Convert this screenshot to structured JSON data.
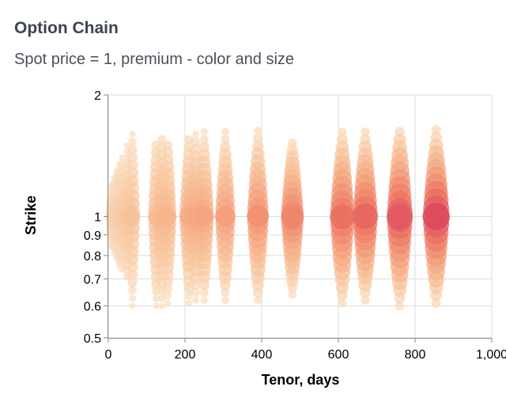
{
  "header": {
    "title": "Option Chain",
    "subtitle": "Spot price = 1, premium - color and size"
  },
  "chart_data": {
    "type": "scatter",
    "title": "Option Chain",
    "subtitle": "Spot price = 1, premium - color and size",
    "xlabel": "Tenor, days",
    "ylabel": "Strike",
    "xlim": [
      0,
      1000
    ],
    "ylim": [
      0.5,
      2
    ],
    "y_scale": "log",
    "grid": true,
    "x_ticks": [
      {
        "value": 0,
        "label": "0"
      },
      {
        "value": 200,
        "label": "200"
      },
      {
        "value": 400,
        "label": "400"
      },
      {
        "value": 600,
        "label": "600"
      },
      {
        "value": 800,
        "label": "800"
      },
      {
        "value": 1000,
        "label": "1,000"
      }
    ],
    "y_ticks": [
      {
        "value": 0.5,
        "label": "0.5"
      },
      {
        "value": 0.6,
        "label": "0.6"
      },
      {
        "value": 0.7,
        "label": "0.7"
      },
      {
        "value": 0.8,
        "label": "0.8"
      },
      {
        "value": 0.9,
        "label": "0.9"
      },
      {
        "value": 1,
        "label": "1"
      },
      {
        "value": 2,
        "label": "2"
      }
    ],
    "color_scale": [
      "#fbe0c4",
      "#f7c39a",
      "#f4a07a",
      "#ec7560",
      "#d8415c"
    ],
    "tenors": [
      {
        "x": 7,
        "strike_min": 0.84,
        "strike_max": 1.2,
        "max_premium": 0.1
      },
      {
        "x": 14,
        "strike_min": 0.82,
        "strike_max": 1.25,
        "max_premium": 0.12
      },
      {
        "x": 21,
        "strike_min": 0.79,
        "strike_max": 1.3,
        "max_premium": 0.14
      },
      {
        "x": 28,
        "strike_min": 0.76,
        "strike_max": 1.35,
        "max_premium": 0.16
      },
      {
        "x": 35,
        "strike_min": 0.74,
        "strike_max": 1.4,
        "max_premium": 0.18
      },
      {
        "x": 49,
        "strike_min": 0.71,
        "strike_max": 1.5,
        "max_premium": 0.21
      },
      {
        "x": 63,
        "strike_min": 0.6,
        "strike_max": 1.6,
        "max_premium": 0.24
      },
      {
        "x": 125,
        "strike_min": 0.6,
        "strike_max": 1.5,
        "max_premium": 0.28
      },
      {
        "x": 140,
        "strike_min": 0.6,
        "strike_max": 1.55,
        "max_premium": 0.3
      },
      {
        "x": 155,
        "strike_min": 0.61,
        "strike_max": 1.5,
        "max_premium": 0.32
      },
      {
        "x": 210,
        "strike_min": 0.61,
        "strike_max": 1.55,
        "max_premium": 0.38
      },
      {
        "x": 228,
        "strike_min": 0.62,
        "strike_max": 1.6,
        "max_premium": 0.4
      },
      {
        "x": 250,
        "strike_min": 0.62,
        "strike_max": 1.62,
        "max_premium": 0.42
      },
      {
        "x": 305,
        "strike_min": 0.62,
        "strike_max": 1.62,
        "max_premium": 0.46
      },
      {
        "x": 390,
        "strike_min": 0.62,
        "strike_max": 1.63,
        "max_premium": 0.54
      },
      {
        "x": 480,
        "strike_min": 0.64,
        "strike_max": 1.52,
        "max_premium": 0.6
      },
      {
        "x": 610,
        "strike_min": 0.61,
        "strike_max": 1.62,
        "max_premium": 0.7
      },
      {
        "x": 670,
        "strike_min": 0.62,
        "strike_max": 1.62,
        "max_premium": 0.74
      },
      {
        "x": 760,
        "strike_min": 0.6,
        "strike_max": 1.62,
        "max_premium": 0.8
      },
      {
        "x": 855,
        "strike_min": 0.61,
        "strike_max": 1.64,
        "max_premium": 0.86
      }
    ]
  }
}
